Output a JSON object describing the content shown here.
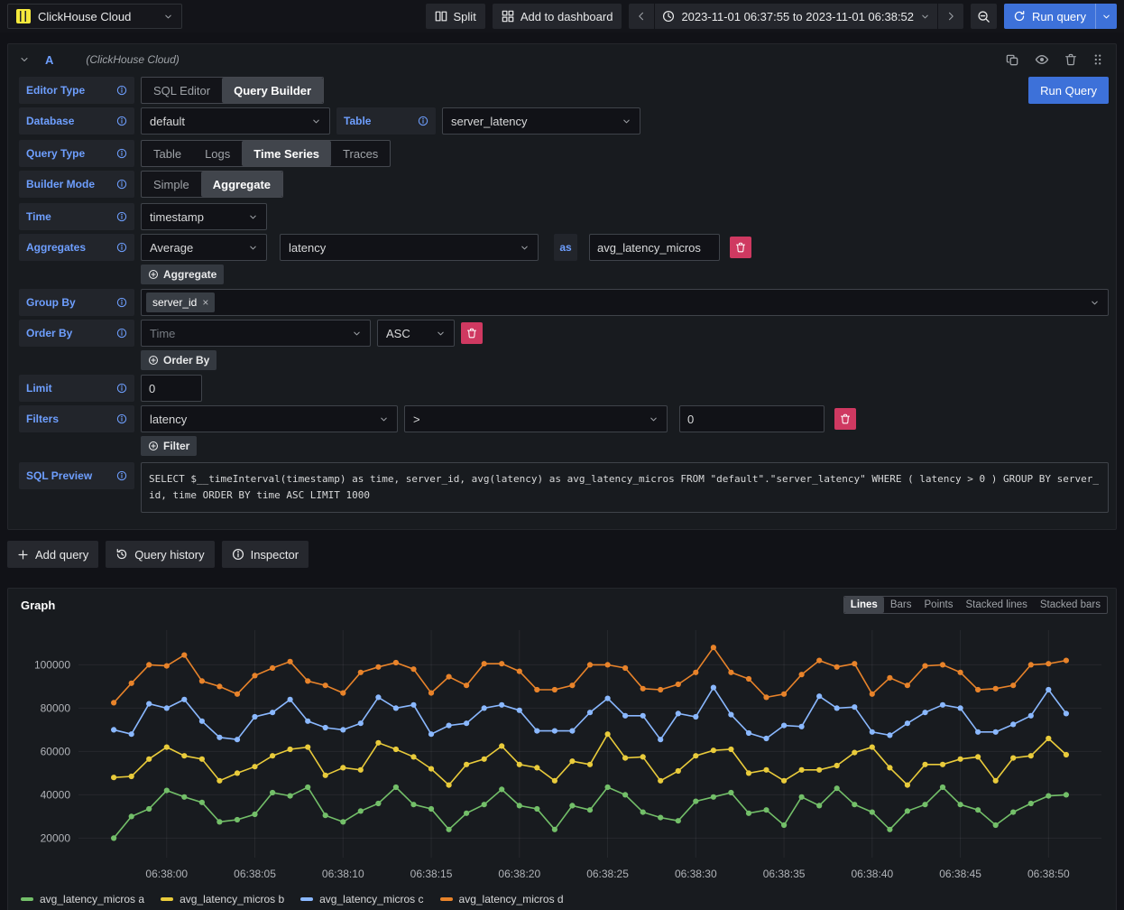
{
  "topbar": {
    "datasource": "ClickHouse Cloud",
    "split": "Split",
    "add_to_dashboard": "Add to dashboard",
    "time_range": "2023-11-01 06:37:55 to 2023-11-01 06:38:52",
    "run_query": "Run query"
  },
  "query_editor": {
    "ref_id": "A",
    "datasource_hint": "(ClickHouse Cloud)",
    "run_query_button": "Run Query",
    "rows": {
      "editor_type": {
        "label": "Editor Type",
        "options": [
          "SQL Editor",
          "Query Builder"
        ],
        "active": "Query Builder"
      },
      "database": {
        "label": "Database",
        "value": "default"
      },
      "table": {
        "label": "Table",
        "value": "server_latency"
      },
      "query_type": {
        "label": "Query Type",
        "options": [
          "Table",
          "Logs",
          "Time Series",
          "Traces"
        ],
        "active": "Time Series"
      },
      "builder_mode": {
        "label": "Builder Mode",
        "options": [
          "Simple",
          "Aggregate"
        ],
        "active": "Aggregate"
      },
      "time": {
        "label": "Time",
        "value": "timestamp"
      },
      "aggregates": {
        "label": "Aggregates",
        "function": "Average",
        "column": "latency",
        "as_label": "as",
        "alias": "avg_latency_micros",
        "add_button": "Aggregate"
      },
      "group_by": {
        "label": "Group By",
        "tags": [
          "server_id"
        ]
      },
      "order_by": {
        "label": "Order By",
        "field_placeholder": "Time",
        "direction": "ASC",
        "add_button": "Order By"
      },
      "limit": {
        "label": "Limit",
        "value": "0"
      },
      "filters": {
        "label": "Filters",
        "field": "latency",
        "operator": ">",
        "value": "0",
        "add_button": "Filter"
      },
      "sql_preview": {
        "label": "SQL Preview",
        "sql": "SELECT $__timeInterval(timestamp) as time, server_id, avg(latency) as avg_latency_micros FROM \"default\".\"server_latency\" WHERE ( latency > 0 ) GROUP BY server_id, time ORDER BY time ASC LIMIT 1000"
      }
    }
  },
  "actions": {
    "add_query": "Add query",
    "query_history": "Query history",
    "inspector": "Inspector"
  },
  "graph_panel": {
    "title": "Graph",
    "viz_options": [
      "Lines",
      "Bars",
      "Points",
      "Stacked lines",
      "Stacked bars"
    ],
    "viz_active": "Lines"
  },
  "chart_data": {
    "type": "line",
    "title": "Graph",
    "xlabel": "",
    "ylabel": "",
    "grid": true,
    "legend_position": "bottom",
    "x_start": "06:37:55",
    "x_end": "06:38:52",
    "ylim": [
      11000,
      116000
    ],
    "y_ticks": [
      20000,
      40000,
      60000,
      80000,
      100000
    ],
    "x_ticks": [
      "06:38:00",
      "06:38:05",
      "06:38:10",
      "06:38:15",
      "06:38:20",
      "06:38:25",
      "06:38:30",
      "06:38:35",
      "06:38:40",
      "06:38:45",
      "06:38:50"
    ],
    "times": [
      "06:37:57",
      "06:37:58",
      "06:37:59",
      "06:38:00",
      "06:38:01",
      "06:38:02",
      "06:38:03",
      "06:38:04",
      "06:38:05",
      "06:38:06",
      "06:38:07",
      "06:38:08",
      "06:38:09",
      "06:38:10",
      "06:38:11",
      "06:38:12",
      "06:38:13",
      "06:38:14",
      "06:38:15",
      "06:38:16",
      "06:38:17",
      "06:38:18",
      "06:38:19",
      "06:38:20",
      "06:38:21",
      "06:38:22",
      "06:38:23",
      "06:38:24",
      "06:38:25",
      "06:38:26",
      "06:38:27",
      "06:38:28",
      "06:38:29",
      "06:38:30",
      "06:38:31",
      "06:38:32",
      "06:38:33",
      "06:38:34",
      "06:38:35",
      "06:38:36",
      "06:38:37",
      "06:38:38",
      "06:38:39",
      "06:38:40",
      "06:38:41",
      "06:38:42",
      "06:38:43",
      "06:38:44",
      "06:38:45",
      "06:38:46",
      "06:38:47",
      "06:38:48",
      "06:38:49",
      "06:38:50",
      "06:38:51"
    ],
    "series": [
      {
        "name": "avg_latency_micros a",
        "color": "#73bf69",
        "values": [
          20000,
          30000,
          33500,
          42000,
          39000,
          36500,
          27500,
          28500,
          31000,
          41000,
          39500,
          43500,
          30500,
          27500,
          32500,
          36000,
          43500,
          35500,
          33500,
          24000,
          31500,
          35500,
          42500,
          35000,
          33500,
          24000,
          35000,
          33000,
          43500,
          40000,
          32000,
          29500,
          28000,
          37000,
          39000,
          41000,
          31500,
          33000,
          26000,
          39000,
          35000,
          43000,
          35500,
          32000,
          24000,
          32500,
          35500,
          43500,
          35500,
          33000,
          26000,
          32000,
          36000,
          39500,
          40000
        ]
      },
      {
        "name": "avg_latency_micros b",
        "color": "#e9cb3b",
        "values": [
          48000,
          48500,
          56500,
          62000,
          58000,
          56500,
          46500,
          50000,
          53000,
          58000,
          61000,
          62000,
          49000,
          52500,
          51500,
          64000,
          61000,
          57500,
          52000,
          44500,
          54000,
          56500,
          62500,
          54000,
          52500,
          46500,
          55500,
          54000,
          68000,
          57000,
          57500,
          46500,
          51000,
          58000,
          60500,
          61000,
          50000,
          51500,
          46500,
          51500,
          51500,
          53500,
          59500,
          62000,
          52500,
          44500,
          54000,
          54000,
          56500,
          57500,
          46500,
          57000,
          58000,
          66000,
          58500
        ]
      },
      {
        "name": "avg_latency_micros c",
        "color": "#8ab8ff",
        "values": [
          70000,
          68000,
          82000,
          80000,
          84000,
          74000,
          66500,
          65500,
          76000,
          78000,
          84000,
          74000,
          71000,
          70000,
          73000,
          85000,
          80000,
          81500,
          68000,
          72000,
          73000,
          80000,
          81500,
          79000,
          69500,
          69500,
          69500,
          78000,
          84500,
          76500,
          76500,
          65500,
          77500,
          76000,
          89500,
          77000,
          68500,
          66000,
          72000,
          71500,
          85500,
          80000,
          80500,
          69000,
          67500,
          73000,
          78000,
          81500,
          80000,
          69000,
          69000,
          72500,
          76500,
          88500,
          77500
        ]
      },
      {
        "name": "avg_latency_micros d",
        "color": "#e8832a",
        "values": [
          82500,
          91500,
          100000,
          99500,
          104500,
          92500,
          90000,
          86500,
          95000,
          98500,
          101500,
          92500,
          90500,
          87000,
          96500,
          99000,
          101000,
          98000,
          87000,
          94500,
          90500,
          100500,
          100500,
          97000,
          88500,
          88500,
          90500,
          100000,
          100000,
          98500,
          89000,
          88500,
          91000,
          96500,
          108000,
          96500,
          93500,
          85000,
          86500,
          95500,
          102000,
          99000,
          100500,
          86500,
          94000,
          90500,
          99500,
          100000,
          96500,
          88500,
          89000,
          90500,
          100000,
          100500,
          102000
        ]
      }
    ]
  },
  "icons": {
    "clickhouse-logo-icon": "yellow striped square",
    "split-icon": "two columns",
    "apps-icon": "four squares grid",
    "chevron-left-icon": "‹",
    "chevron-right-icon": "›",
    "chevron-down-icon": "⌄",
    "clock-icon": "◷",
    "zoom-out-icon": "magnifier with minus",
    "sync-icon": "⟳",
    "copy-icon": "⧉",
    "eye-icon": "eye",
    "trash-icon": "trash can",
    "drag-handle-icon": "⠿",
    "info-icon": "ⓘ",
    "plus-icon": "+",
    "circle-plus-icon": "⊕",
    "history-icon": "↺",
    "close-icon": "×"
  }
}
